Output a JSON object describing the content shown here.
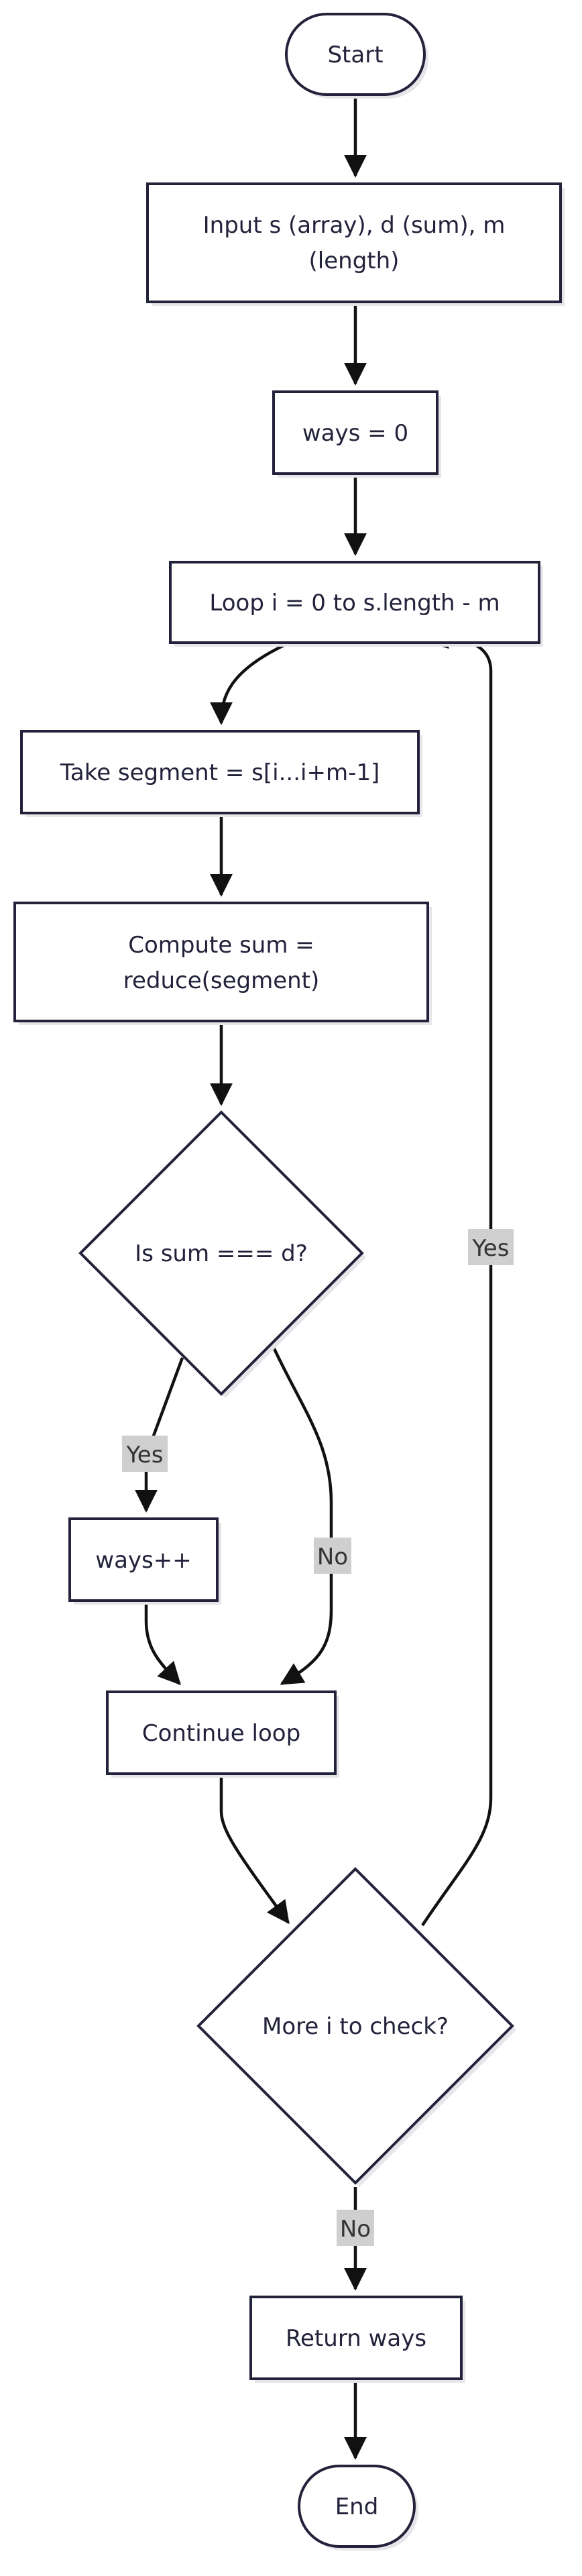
{
  "nodes": {
    "start": "Start",
    "input_line1": "Input s (array), d (sum), m",
    "input_line2": "(length)",
    "ways_init": "ways = 0",
    "loop": "Loop i = 0 to s.length - m",
    "take_segment": "Take segment = s[i...i+m-1]",
    "compute_line1": "Compute sum =",
    "compute_line2": "reduce(segment)",
    "decision_sum": "Is sum === d?",
    "ways_inc": "ways++",
    "continue": "Continue loop",
    "decision_more": "More i to check?",
    "return": "Return ways",
    "end": "End"
  },
  "edge_labels": {
    "sum_yes": "Yes",
    "sum_no": "No",
    "more_yes": "Yes",
    "more_no": "No"
  },
  "colors": {
    "node_border": "#22223b",
    "node_fill": "#ffffff",
    "edge": "#111111",
    "edge_label_bg": "#cfcfcf"
  }
}
